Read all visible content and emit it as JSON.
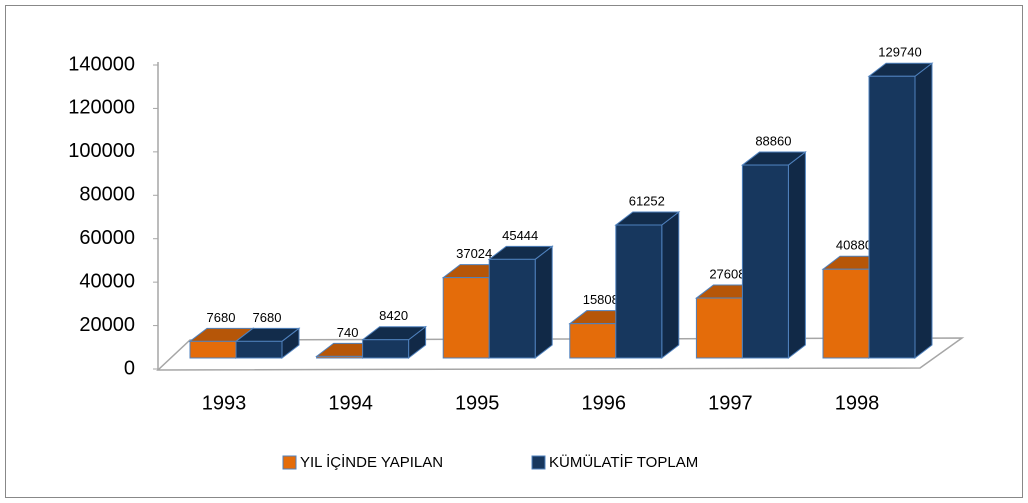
{
  "chart_data": {
    "type": "bar3d",
    "categories": [
      "1993",
      "1994",
      "1995",
      "1996",
      "1997",
      "1998"
    ],
    "series": [
      {
        "name": "YIL İÇİNDE YAPILAN",
        "color": "#e46c0a",
        "values": [
          7680,
          740,
          37024,
          15808,
          27608,
          40880
        ]
      },
      {
        "name": "KÜMÜLATİF TOPLAM",
        "color": "#17375e",
        "values": [
          7680,
          8420,
          45444,
          61252,
          88860,
          129740
        ]
      }
    ],
    "ylim": [
      0,
      140000
    ],
    "yticks": [
      0,
      20000,
      40000,
      60000,
      80000,
      100000,
      120000,
      140000
    ],
    "legend": "bottom"
  }
}
